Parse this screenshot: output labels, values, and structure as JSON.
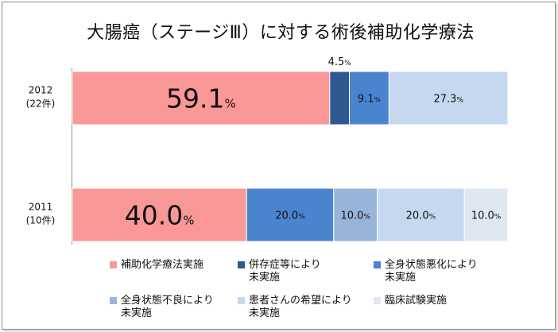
{
  "chart_data": {
    "type": "bar",
    "orientation": "horizontal",
    "stacked": true,
    "title": "大腸癌（ステージⅢ）に対する術後補助化学療法",
    "categories": [
      "2012\n(22件)",
      "2011\n(10件)"
    ],
    "unit": "%",
    "xlim": [
      0,
      100
    ],
    "series": [
      {
        "name": "補助化学療法実施",
        "color": "#fa9797",
        "values": [
          59.1,
          40.0
        ],
        "labels": [
          "59.1",
          "40.0"
        ]
      },
      {
        "name": "併存症等により\n未実施",
        "color": "#2f5790",
        "values": [
          4.5,
          0
        ],
        "labels": [
          "4.5",
          ""
        ]
      },
      {
        "name": "全身状態悪化により\n未実施",
        "color": "#4a84cf",
        "values": [
          9.1,
          20.0
        ],
        "labels": [
          "9.1",
          "20.0"
        ]
      },
      {
        "name": "全身状態不良により\n未実施",
        "color": "#98b5d9",
        "values": [
          0,
          10.0
        ],
        "labels": [
          "",
          "10.0"
        ]
      },
      {
        "name": "患者さんの希望により\n未実施",
        "color": "#c5d8ef",
        "values": [
          27.3,
          20.0
        ],
        "labels": [
          "27.3",
          "20.0"
        ]
      },
      {
        "name": "臨床試験実施",
        "color": "#dfe7f1",
        "values": [
          0,
          10.0
        ],
        "labels": [
          "",
          "10.0"
        ]
      }
    ],
    "legend_position": "bottom",
    "grid": false
  }
}
